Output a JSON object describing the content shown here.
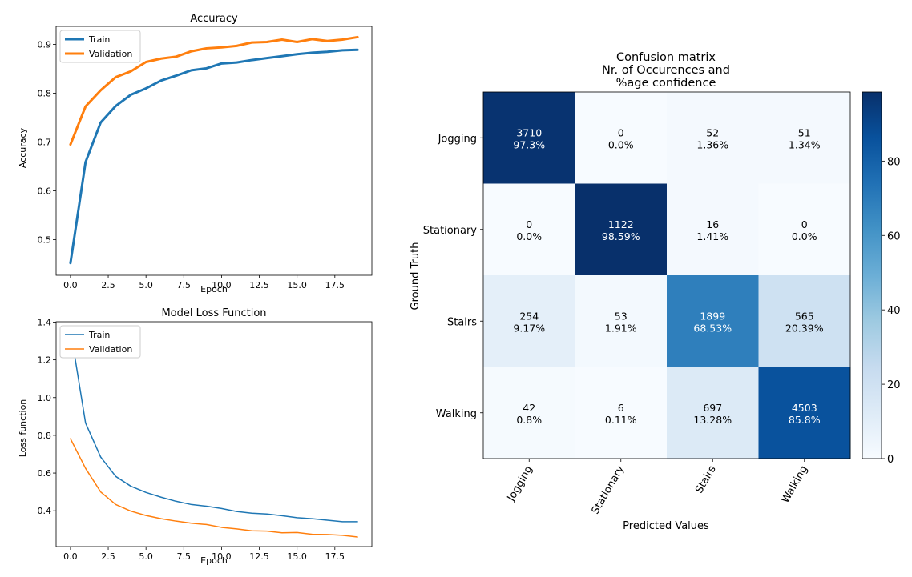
{
  "chart_data": [
    {
      "type": "line",
      "title": "Accuracy",
      "xlabel": "Epoch",
      "ylabel": "Accuracy",
      "x": [
        0,
        1,
        2,
        3,
        4,
        5,
        6,
        7,
        8,
        9,
        10,
        11,
        12,
        13,
        14,
        15,
        16,
        17,
        18,
        19
      ],
      "xticks": [
        0,
        2.5,
        5,
        7.5,
        10,
        12.5,
        15,
        17.5
      ],
      "xtick_labels": [
        "0.0",
        "2.5",
        "5.0",
        "7.5",
        "10.0",
        "12.5",
        "15.0",
        "17.5"
      ],
      "yticks": [
        0.5,
        0.6,
        0.7,
        0.8,
        0.9
      ],
      "ytick_labels": [
        "0.5",
        "0.6",
        "0.7",
        "0.8",
        "0.9"
      ],
      "xlim": [
        -0.95,
        19.95
      ],
      "ylim": [
        0.427,
        0.937
      ],
      "legend": "upper left",
      "series": [
        {
          "name": "Train",
          "color": "#1f77b4",
          "values": [
            0.452,
            0.659,
            0.74,
            0.774,
            0.797,
            0.81,
            0.826,
            0.836,
            0.847,
            0.851,
            0.861,
            0.863,
            0.868,
            0.872,
            0.876,
            0.88,
            0.883,
            0.885,
            0.888,
            0.889
          ]
        },
        {
          "name": "Validation",
          "color": "#ff7f0e",
          "values": [
            0.695,
            0.773,
            0.806,
            0.833,
            0.845,
            0.864,
            0.871,
            0.875,
            0.886,
            0.892,
            0.894,
            0.897,
            0.904,
            0.905,
            0.91,
            0.905,
            0.911,
            0.907,
            0.91,
            0.915
          ]
        }
      ]
    },
    {
      "type": "line",
      "title": "Model Loss Function",
      "xlabel": "Epoch",
      "ylabel": "Loss function",
      "x": [
        0,
        1,
        2,
        3,
        4,
        5,
        6,
        7,
        8,
        9,
        10,
        11,
        12,
        13,
        14,
        15,
        16,
        17,
        18,
        19
      ],
      "xticks": [
        0,
        2.5,
        5,
        7.5,
        10,
        12.5,
        15,
        17.5
      ],
      "xtick_labels": [
        "0.0",
        "2.5",
        "5.0",
        "7.5",
        "10.0",
        "12.5",
        "15.0",
        "17.5"
      ],
      "yticks": [
        0.4,
        0.6,
        0.8,
        1.0,
        1.2,
        1.4
      ],
      "ytick_labels": [
        "0.4",
        "0.6",
        "0.8",
        "1.0",
        "1.2",
        "1.4"
      ],
      "xlim": [
        -0.95,
        19.95
      ],
      "ylim": [
        0.21,
        1.402
      ],
      "legend": "upper left",
      "series": [
        {
          "name": "Train",
          "color": "#1f77b4",
          "values": [
            1.36,
            0.865,
            0.685,
            0.582,
            0.53,
            0.497,
            0.472,
            0.45,
            0.433,
            0.424,
            0.412,
            0.396,
            0.387,
            0.383,
            0.374,
            0.363,
            0.358,
            0.35,
            0.342,
            0.342
          ]
        },
        {
          "name": "Validation",
          "color": "#ff7f0e",
          "values": [
            0.782,
            0.625,
            0.5,
            0.433,
            0.398,
            0.375,
            0.358,
            0.345,
            0.334,
            0.327,
            0.312,
            0.304,
            0.294,
            0.292,
            0.283,
            0.285,
            0.275,
            0.274,
            0.27,
            0.261
          ]
        }
      ]
    },
    {
      "type": "heatmap",
      "title": [
        "Confusion matrix",
        "Nr. of Occurences and",
        "%age confidence"
      ],
      "xlabel": "Predicted Values",
      "ylabel": "Ground Truth",
      "x_categories": [
        "Jogging",
        "Stationary",
        "Stairs",
        "Walking"
      ],
      "y_categories": [
        "Jogging",
        "Stationary",
        "Stairs",
        "Walking"
      ],
      "counts": [
        [
          3710,
          0,
          52,
          51
        ],
        [
          0,
          1122,
          16,
          0
        ],
        [
          254,
          53,
          1899,
          565
        ],
        [
          42,
          6,
          697,
          4503
        ]
      ],
      "percent_labels": [
        [
          "97.3%",
          "0.0%",
          "1.36%",
          "1.34%"
        ],
        [
          "0.0%",
          "98.59%",
          "1.41%",
          "0.0%"
        ],
        [
          "9.17%",
          "1.91%",
          "68.53%",
          "20.39%"
        ],
        [
          "0.8%",
          "0.11%",
          "13.28%",
          "85.8%"
        ]
      ],
      "percent": [
        [
          97.3,
          0.0,
          1.36,
          1.34
        ],
        [
          0.0,
          98.59,
          1.41,
          0.0
        ],
        [
          9.17,
          1.91,
          68.53,
          20.39
        ],
        [
          0.8,
          0.11,
          13.28,
          85.8
        ]
      ],
      "colormap": "Blues",
      "colorbar_range": [
        0,
        98.59
      ],
      "colorbar_ticks": [
        0,
        20,
        40,
        60,
        80
      ],
      "colorbar_tick_labels": [
        "0",
        "20",
        "40",
        "60",
        "80"
      ]
    }
  ]
}
